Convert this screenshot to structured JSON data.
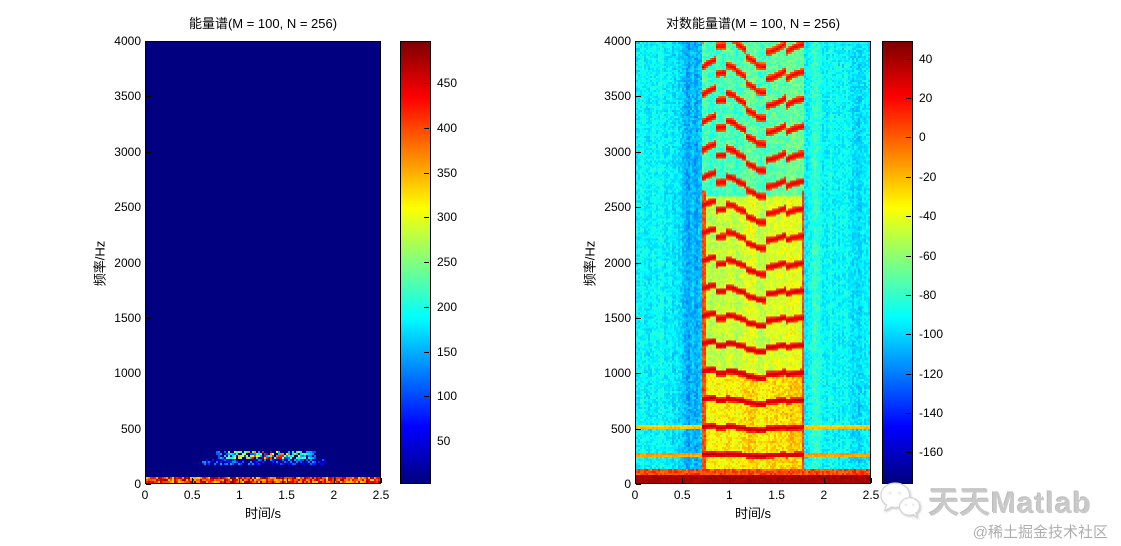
{
  "figure": {
    "background": "#ffffff"
  },
  "chart_data": [
    {
      "type": "heatmap",
      "title": "能量谱(M = 100, N = 256)",
      "xlabel": "时间/s",
      "ylabel": "频率/Hz",
      "x_range": [
        0,
        2.5
      ],
      "y_range": [
        0,
        4000
      ],
      "x_ticks": [
        0,
        0.5,
        1,
        1.5,
        2,
        2.5
      ],
      "y_ticks": [
        0,
        500,
        1000,
        1500,
        2000,
        2500,
        3000,
        3500,
        4000
      ],
      "colormap": "jet",
      "grid": false,
      "colorbar": {
        "min": 2,
        "max": 497,
        "ticks": [
          50,
          100,
          150,
          200,
          250,
          300,
          350,
          400,
          450
        ]
      },
      "features": {
        "background_value": 2,
        "baseline_band": {
          "freq_max": 40,
          "value_range": [
            330,
            495
          ]
        },
        "voiced_streak": {
          "time_range": [
            0.74,
            1.83
          ],
          "freq_range": [
            210,
            290
          ],
          "value_range": [
            100,
            497
          ]
        },
        "faint_streak": {
          "time_range": [
            0.6,
            1.93
          ],
          "freq_range": [
            150,
            210
          ],
          "value_range": [
            30,
            150
          ]
        }
      }
    },
    {
      "type": "heatmap",
      "title": "对数能量谱(M = 100, N = 256)",
      "xlabel": "时间/s",
      "ylabel": "频率/Hz",
      "x_range": [
        0,
        2.5
      ],
      "y_range": [
        0,
        4000
      ],
      "x_ticks": [
        0,
        0.5,
        1,
        1.5,
        2,
        2.5
      ],
      "y_ticks": [
        0,
        500,
        1000,
        1500,
        2000,
        2500,
        3000,
        3500,
        4000
      ],
      "colormap": "jet",
      "grid": false,
      "colorbar": {
        "min": -176,
        "max": 49,
        "ticks": [
          40,
          20,
          0,
          -20,
          -40,
          -60,
          -80,
          -100,
          -120,
          -140,
          -160
        ]
      },
      "features": {
        "background_db": -95,
        "background_noise_db": 20,
        "event": {
          "time_range": [
            0.7,
            1.8
          ],
          "bg_db_low": -28,
          "bg_db_mid": -44,
          "bg_db_high": -72,
          "low_freq_limit": 1000,
          "high_freq_limit": 2600
        },
        "harmonics": {
          "f0_hz": 247,
          "count": 16,
          "line_db_base": 40,
          "line_db_slope": -1.0,
          "vibrato": 0.02
        },
        "persistent_lines": [
          {
            "freq": 250,
            "db": -8
          },
          {
            "freq": 500,
            "db": -16
          }
        ],
        "baseline_band": {
          "freq_max": 55,
          "db": 40
        },
        "edge_lines": {
          "times": [
            0.72,
            1.79
          ],
          "freq_max": 2650,
          "db": 5
        }
      }
    }
  ],
  "watermark": {
    "brand": "天天Matlab",
    "credit": "@稀土掘金技术社区"
  }
}
